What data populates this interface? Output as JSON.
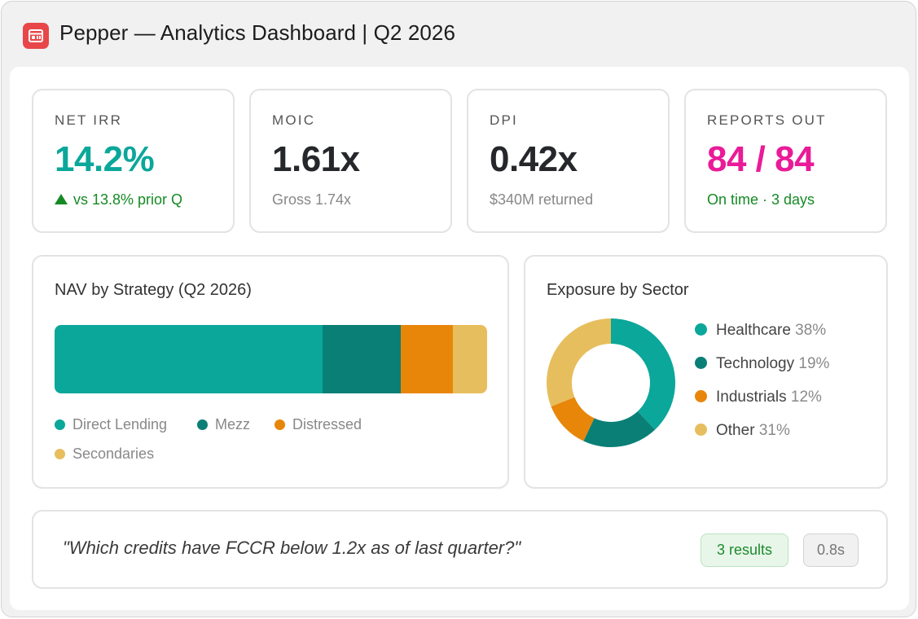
{
  "app": {
    "title": "Pepper — Analytics Dashboard | Q2 2026",
    "icon": "calendar-icon",
    "icon_color": "#e8474a"
  },
  "kpis": [
    {
      "label": "NET IRR",
      "value": "14.2%",
      "sub": "vs 13.8% prior Q",
      "value_color": "#0ba79a",
      "sub_color": "#158a24",
      "trend_icon": "triangle-up-icon"
    },
    {
      "label": "MOIC",
      "value": "1.61x",
      "sub": "Gross 1.74x"
    },
    {
      "label": "DPI",
      "value": "0.42x",
      "sub": "$340M returned"
    },
    {
      "label": "REPORTS OUT",
      "value": "84 / 84",
      "sub": "On time · 3 days",
      "value_color": "#ea1b98",
      "sub_color": "#158a24"
    }
  ],
  "nav": {
    "title": "NAV by Strategy (Q2 2026)",
    "segments": [
      {
        "label": "Direct Lending",
        "share": 62,
        "color": "#0ba79a"
      },
      {
        "label": "Mezz",
        "share": 18,
        "color": "#0a7f76"
      },
      {
        "label": "Distressed",
        "share": 12,
        "color": "#e8860a"
      },
      {
        "label": "Secondaries",
        "share": 8,
        "color": "#e7be5e"
      }
    ]
  },
  "sectors": {
    "title": "Exposure by Sector",
    "items": [
      {
        "label": "Healthcare",
        "pct": "38%",
        "value": 38,
        "color": "#0ba79a"
      },
      {
        "label": "Technology",
        "pct": "19%",
        "value": 19,
        "color": "#0a7f76"
      },
      {
        "label": "Industrials",
        "pct": "12%",
        "value": 12,
        "color": "#e8860a"
      },
      {
        "label": "Other",
        "pct": "31%",
        "value": 31,
        "color": "#e7be5e"
      }
    ]
  },
  "query": {
    "text": "\"Which credits have FCCR below 1.2x as of last quarter?\"",
    "results_badge": "3 results",
    "time_badge": "0.8s"
  }
}
